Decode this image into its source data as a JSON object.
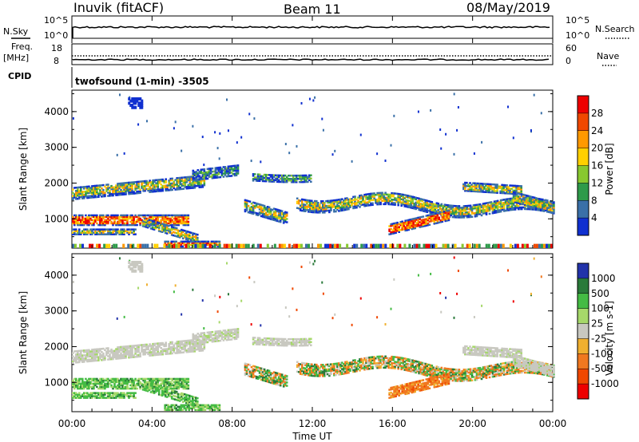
{
  "header": {
    "station": "Inuvik (fitACF)",
    "beam": "Beam 11",
    "date": "08/May/2019"
  },
  "top_panels": {
    "nsky_label": "N.Sky",
    "nsky_ticks": [
      "10^5",
      "10^0"
    ],
    "nsearch_label": "N.Search",
    "nsearch_ticks": [
      "10^5",
      "10^0"
    ],
    "freq_label": "Freq.",
    "freq_unit": "[MHz]",
    "freq_ticks": [
      "18",
      "8"
    ],
    "nave_label": "Nave",
    "nave_ticks": [
      "60",
      "0"
    ],
    "cpid_label": "CPID",
    "cpid_text": "twofsound (1-min) -3505"
  },
  "chart_data": [
    {
      "type": "heatmap",
      "name": "power",
      "ylabel": "Slant Range [km]",
      "yticks": [
        "4000",
        "3000",
        "2000",
        "1000"
      ],
      "ylim": [
        180,
        4600
      ],
      "colorbar_label": "Power [dB]",
      "colorbar_ticks": [
        "28",
        "24",
        "20",
        "16",
        "12",
        "8",
        "4"
      ],
      "colorbar_colors": [
        "#ee0000",
        "#f04800",
        "#ff9900",
        "#ffd000",
        "#88c830",
        "#2e9a4a",
        "#3a70a8",
        "#1030d0"
      ]
    },
    {
      "type": "heatmap",
      "name": "velocity",
      "ylabel": "Slant Range [km]",
      "yticks": [
        "4000",
        "3000",
        "2000",
        "1000"
      ],
      "ylim": [
        180,
        4600
      ],
      "colorbar_label": "Velocity [m s-1]",
      "colorbar_ticks": [
        "1000",
        "500",
        "100",
        "25",
        "-25",
        "-100",
        "-500",
        "-1000"
      ],
      "colorbar_colors": [
        "#2233aa",
        "#2a7a3a",
        "#44bb44",
        "#a6d86a",
        "#c8c8c0",
        "#f0b030",
        "#f07820",
        "#f04800",
        "#ee0000"
      ]
    }
  ],
  "xaxis": {
    "ticks": [
      "00:00",
      "04:00",
      "08:00",
      "12:00",
      "16:00",
      "20:00",
      "00:00"
    ],
    "label": "Time UT",
    "range_hours": [
      0,
      24
    ]
  }
}
